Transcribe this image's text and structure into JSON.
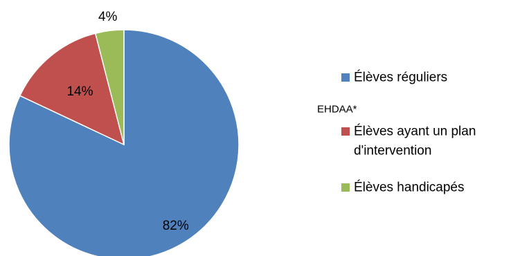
{
  "chart_data": {
    "type": "pie",
    "start_angle_deg": 0,
    "direction": "clockwise",
    "slices": [
      {
        "label": "Élèves réguliers",
        "value": 82,
        "display": "82%",
        "color": "#4F81BD"
      },
      {
        "label": "Élèves ayant un plan d'intervention",
        "value": 14,
        "display": "14%",
        "color": "#C0504D"
      },
      {
        "label": "Élèves handicapés",
        "value": 4,
        "display": "4%",
        "color": "#9BBB59"
      }
    ],
    "legend": {
      "placement": "right",
      "entries": [
        {
          "text_lines": [
            "Élèves réguliers"
          ],
          "color": "#4F81BD"
        },
        {
          "group_heading": "EHDAA*"
        },
        {
          "text_lines": [
            "Élèves ayant un plan",
            "d'intervention"
          ],
          "color": "#C0504D"
        },
        {
          "text_lines": [
            "Élèves handicapés"
          ],
          "color": "#9BBB59"
        }
      ]
    }
  }
}
